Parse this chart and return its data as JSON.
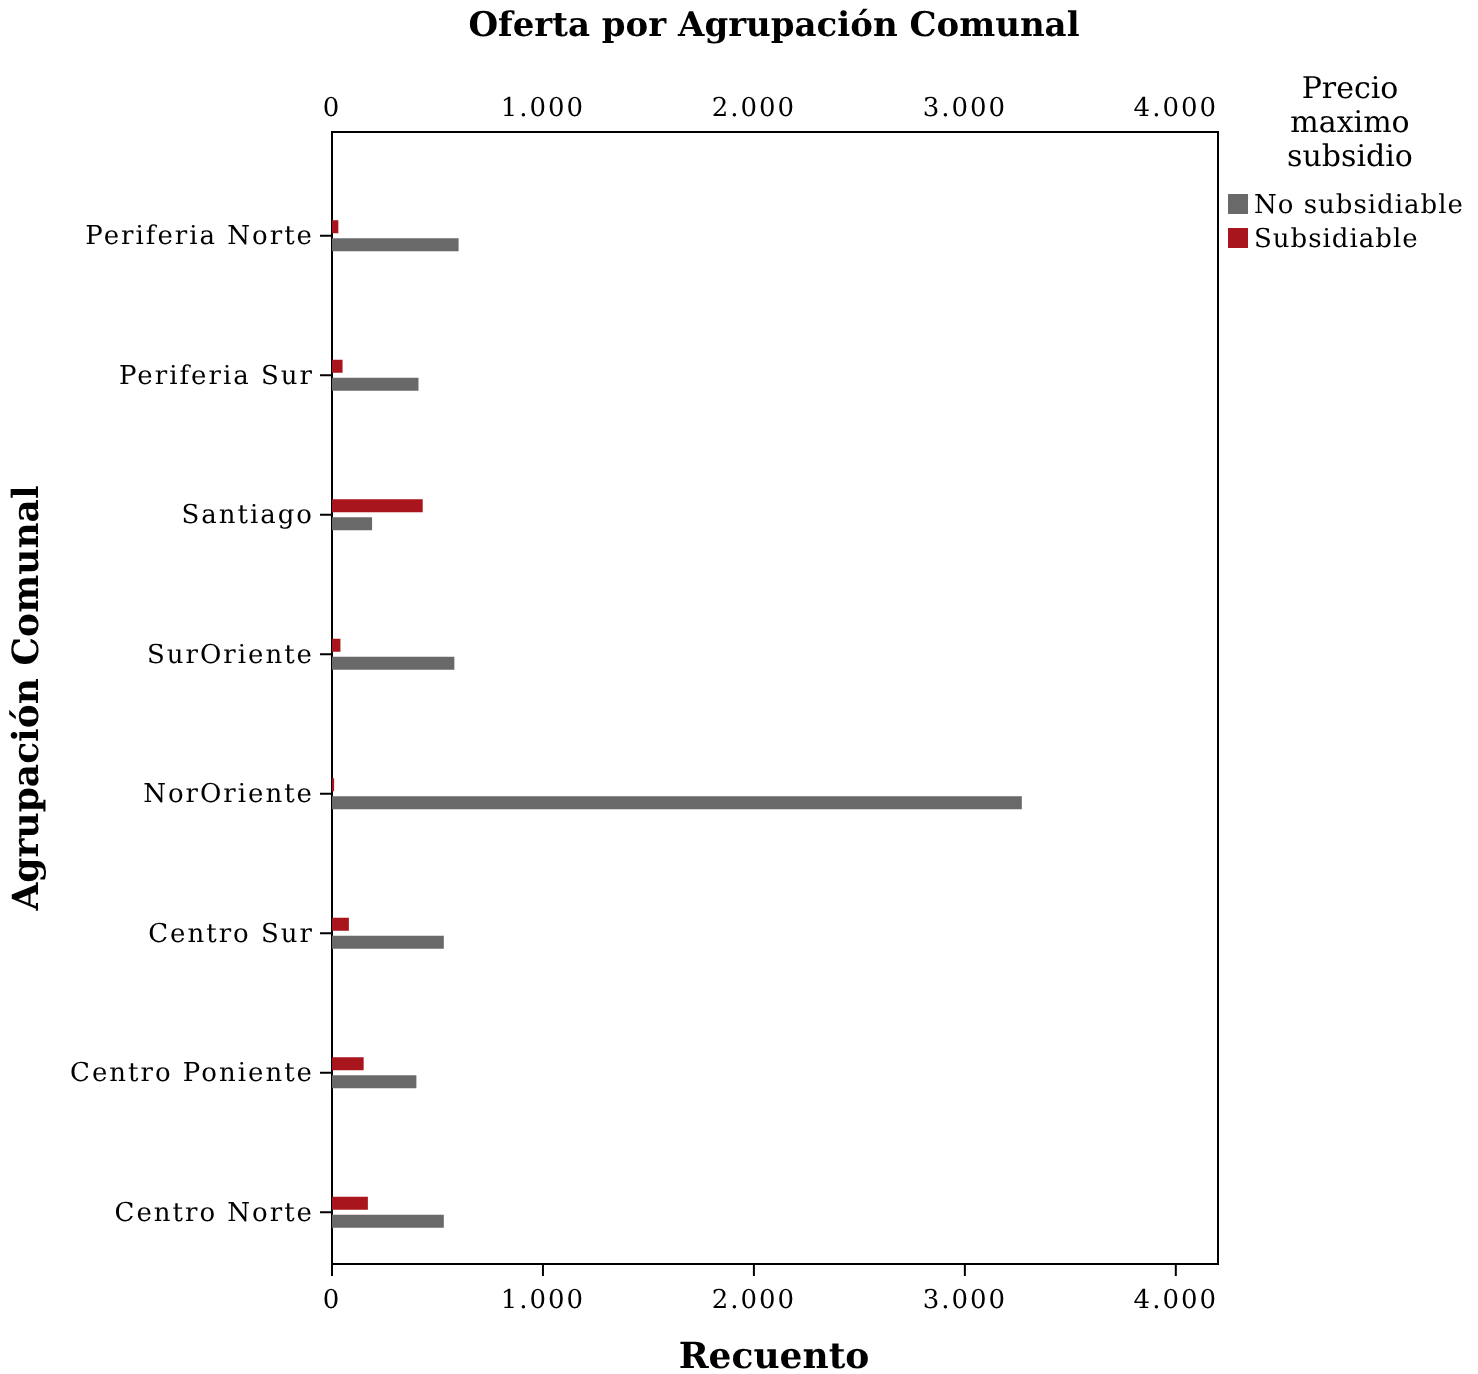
{
  "chart_data": {
    "type": "bar",
    "orientation": "horizontal",
    "title": "Oferta por Agrupación Comunal",
    "xlabel": "Recuento",
    "ylabel": "Agrupación Comunal",
    "legend_title": "Precio maximo subsidio",
    "legend": "top right",
    "categories": [
      "Periferia Norte",
      "Periferia Sur",
      "Santiago",
      "SurOriente",
      "NorOriente",
      "Centro Sur",
      "Centro Poniente",
      "Centro Norte"
    ],
    "series": [
      {
        "name": "No subsidiable",
        "color": "#696969",
        "values": [
          600,
          410,
          190,
          580,
          3270,
          530,
          400,
          530
        ]
      },
      {
        "name": "Subsidiable",
        "color": "#a8151c",
        "values": [
          30,
          50,
          430,
          40,
          10,
          80,
          150,
          170
        ]
      }
    ],
    "xlim": [
      0,
      4200
    ],
    "xticks": [
      {
        "value": 0,
        "label": "0"
      },
      {
        "value": 1000,
        "label": "1.000"
      },
      {
        "value": 2000,
        "label": "2.000"
      },
      {
        "value": 3000,
        "label": "3.000"
      },
      {
        "value": 4000,
        "label": "4.000"
      }
    ],
    "x2lim": [
      0,
      4200
    ],
    "x2ticks": [
      {
        "value": 0,
        "label": "0"
      },
      {
        "value": 1000,
        "label": "1.000"
      },
      {
        "value": 2000,
        "label": "2.000"
      },
      {
        "value": 3000,
        "label": "3.000"
      },
      {
        "value": 4000,
        "label": "4.000"
      }
    ],
    "grid": false
  }
}
